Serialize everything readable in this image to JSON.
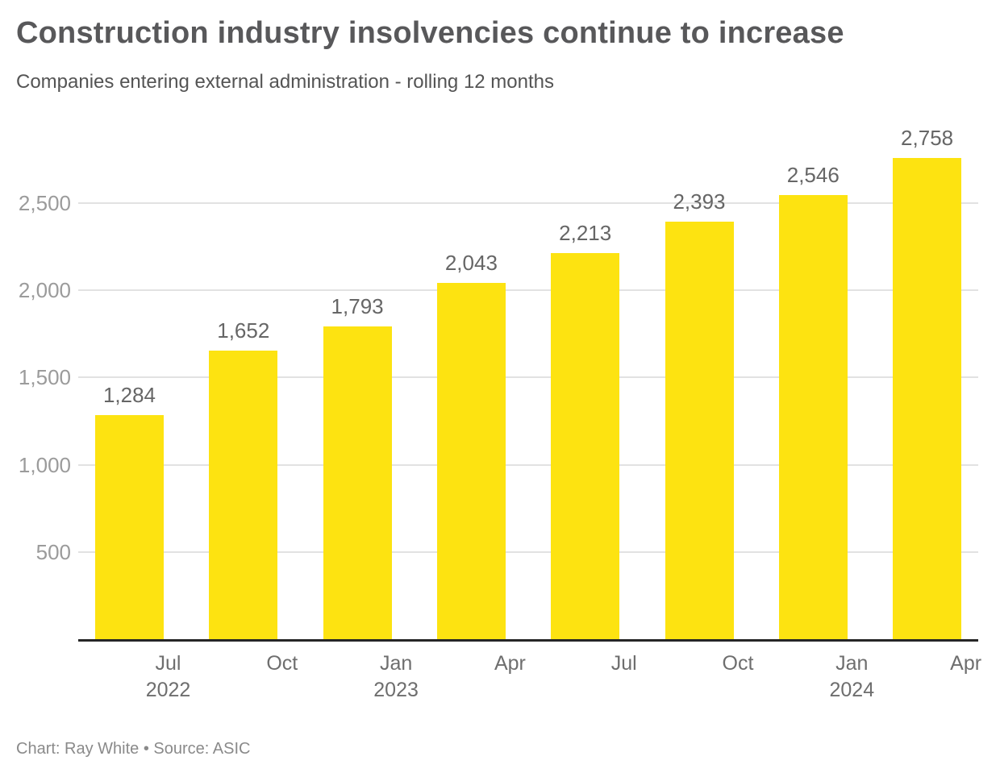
{
  "header": {
    "title": "Construction industry insolvencies continue to increase",
    "subtitle": "Companies entering external administration - rolling 12 months"
  },
  "footer": {
    "text": "Chart: Ray White • Source: ASIC"
  },
  "chart_data": {
    "type": "bar",
    "title": "Construction industry insolvencies continue to increase",
    "subtitle": "Companies entering external administration - rolling 12 months",
    "values": [
      1284,
      1652,
      1793,
      2043,
      2213,
      2393,
      2546,
      2758
    ],
    "value_labels": [
      "1,284",
      "1,652",
      "1,793",
      "2,043",
      "2,213",
      "2,393",
      "2,546",
      "2,758"
    ],
    "x_ticks": [
      {
        "month": "Jul",
        "year": "2022"
      },
      {
        "month": "Oct",
        "year": ""
      },
      {
        "month": "Jan",
        "year": "2023"
      },
      {
        "month": "Apr",
        "year": ""
      },
      {
        "month": "Jul",
        "year": ""
      },
      {
        "month": "Oct",
        "year": ""
      },
      {
        "month": "Jan",
        "year": "2024"
      },
      {
        "month": "Apr",
        "year": ""
      }
    ],
    "y_ticks": [
      {
        "value": 500,
        "label": "500"
      },
      {
        "value": 1000,
        "label": "1,000"
      },
      {
        "value": 1500,
        "label": "1,500"
      },
      {
        "value": 2000,
        "label": "2,000"
      },
      {
        "value": 2500,
        "label": "2,500"
      }
    ],
    "xlabel": "",
    "ylabel": "",
    "ylim": [
      0,
      2800
    ],
    "grid": "horizontal",
    "legend": "none",
    "colors": {
      "bar": "#FDE311",
      "gridline": "#E2E2E2",
      "axis_line": "#262626",
      "value_label": "#666666",
      "y_tick_label": "#9B9B9B",
      "x_tick_label": "#6E6E6E"
    }
  }
}
